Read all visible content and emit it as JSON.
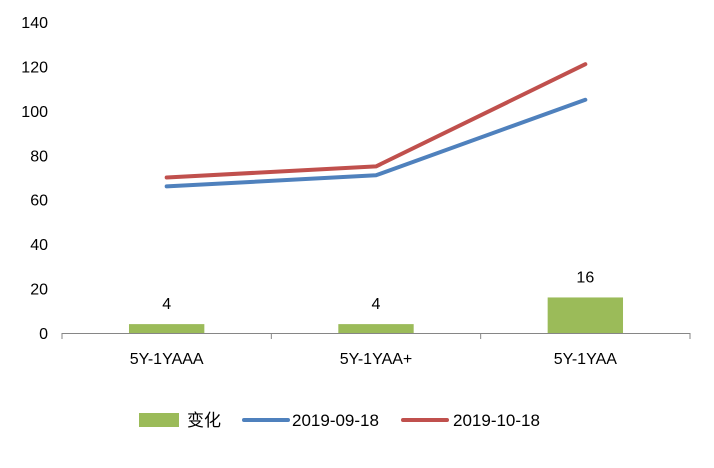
{
  "chart_data": {
    "type": "bar",
    "categories": [
      "5Y-1YAAA",
      "5Y-1YAA+",
      "5Y-1YAA"
    ],
    "series": [
      {
        "name": "变化",
        "type": "bar",
        "color": "#9bbb59",
        "values": [
          4,
          4,
          16
        ],
        "data_labels": [
          "4",
          "4",
          "16"
        ]
      },
      {
        "name": "2019-09-18",
        "type": "line",
        "color": "#4f81bd",
        "values": [
          66,
          71,
          105
        ]
      },
      {
        "name": "2019-10-18",
        "type": "line",
        "color": "#c0504d",
        "values": [
          70,
          75,
          121
        ]
      }
    ],
    "ylim": [
      0,
      140
    ],
    "yticks": [
      0,
      20,
      40,
      60,
      80,
      100,
      120,
      140
    ],
    "legend_position": "bottom",
    "grid": false,
    "title": "",
    "xlabel": "",
    "ylabel": ""
  }
}
